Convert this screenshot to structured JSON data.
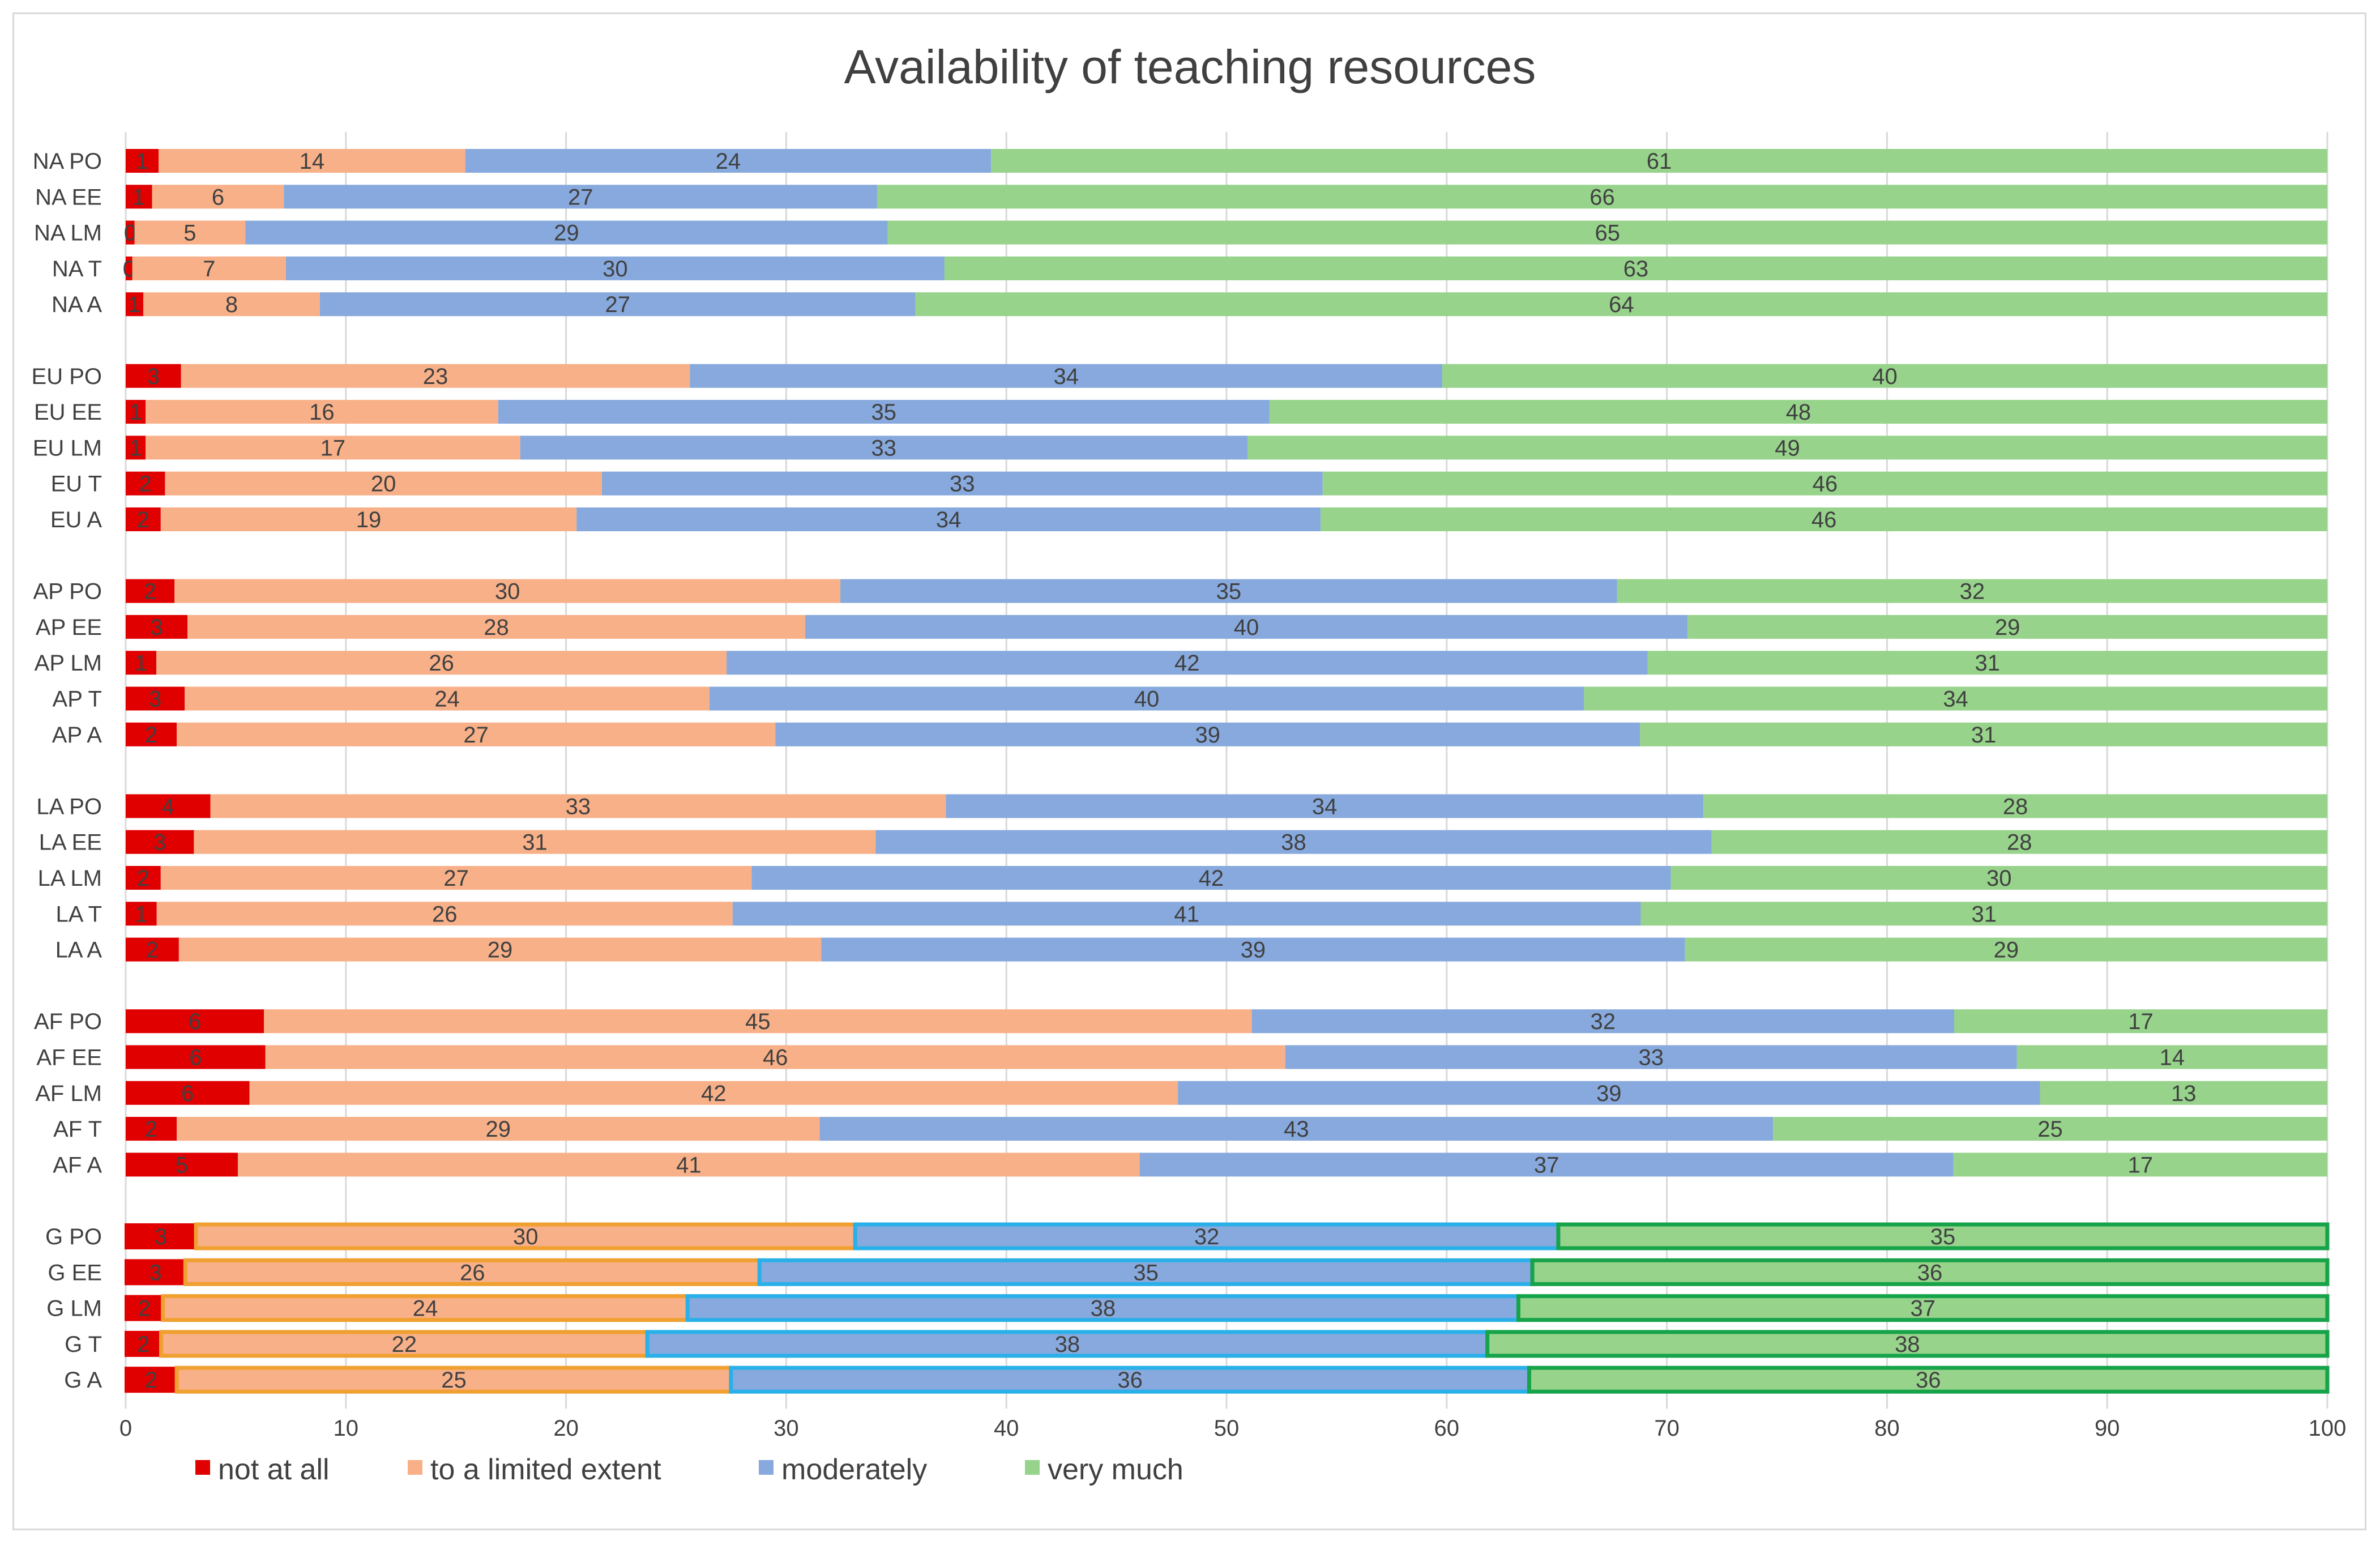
{
  "chart_data": {
    "type": "bar",
    "orientation": "horizontal",
    "stacked": true,
    "title": "Availability of teaching resources",
    "xlabel": "",
    "ylabel": "",
    "xlim": [
      0,
      100
    ],
    "xticks": [
      0,
      10,
      20,
      30,
      40,
      50,
      60,
      70,
      80,
      90,
      100
    ],
    "grid": true,
    "legend_position": "bottom-left",
    "colors": {
      "not at all": "#e00000",
      "to a limited extent": "#f8b088",
      "moderately": "#87a9dd",
      "very much": "#97d38b",
      "outline_orange": "#f0a030",
      "outline_blue": "#2ab0e8",
      "outline_green": "#16a34a"
    },
    "series_names": [
      "not at all",
      "to a limited extent",
      "moderately",
      "very much"
    ],
    "groups": [
      {
        "name": "NA",
        "highlight": false,
        "rows": [
          {
            "label": "NA PO",
            "values": [
              1.5,
              14,
              24,
              61
            ],
            "labels": [
              "1",
              "14",
              "24",
              "61"
            ]
          },
          {
            "label": "NA EE",
            "values": [
              1.2,
              6,
              27,
              66
            ],
            "labels": [
              "1",
              "6",
              "27",
              "66"
            ]
          },
          {
            "label": "NA LM",
            "values": [
              0.4,
              5,
              29,
              65
            ],
            "labels": [
              "0",
              "5",
              "29",
              "65"
            ]
          },
          {
            "label": "NA T",
            "values": [
              0.3,
              7,
              30,
              63
            ],
            "labels": [
              "0",
              "7",
              "30",
              "63"
            ]
          },
          {
            "label": "NA A",
            "values": [
              0.8,
              8,
              27,
              64
            ],
            "labels": [
              "1",
              "8",
              "27",
              "64"
            ]
          }
        ]
      },
      {
        "name": "EU",
        "highlight": false,
        "rows": [
          {
            "label": "EU PO",
            "values": [
              2.5,
              23,
              34,
              40
            ],
            "labels": [
              "3",
              "23",
              "34",
              "40"
            ]
          },
          {
            "label": "EU EE",
            "values": [
              0.9,
              16,
              35,
              48
            ],
            "labels": [
              "1",
              "16",
              "35",
              "48"
            ]
          },
          {
            "label": "EU LM",
            "values": [
              0.9,
              17,
              33,
              49
            ],
            "labels": [
              "1",
              "17",
              "33",
              "49"
            ]
          },
          {
            "label": "EU T",
            "values": [
              1.8,
              20,
              33,
              46
            ],
            "labels": [
              "2",
              "20",
              "33",
              "46"
            ]
          },
          {
            "label": "EU A",
            "values": [
              1.6,
              19,
              34,
              46
            ],
            "labels": [
              "2",
              "19",
              "34",
              "46"
            ]
          }
        ]
      },
      {
        "name": "AP",
        "highlight": false,
        "rows": [
          {
            "label": "AP PO",
            "values": [
              2.2,
              30,
              35,
              32
            ],
            "labels": [
              "2",
              "30",
              "35",
              "32"
            ]
          },
          {
            "label": "AP EE",
            "values": [
              2.8,
              28,
              40,
              29
            ],
            "labels": [
              "3",
              "28",
              "40",
              "29"
            ]
          },
          {
            "label": "AP LM",
            "values": [
              1.4,
              26,
              42,
              31
            ],
            "labels": [
              "1",
              "26",
              "42",
              "31"
            ]
          },
          {
            "label": "AP T",
            "values": [
              2.7,
              24,
              40,
              34
            ],
            "labels": [
              "3",
              "24",
              "40",
              "34"
            ]
          },
          {
            "label": "AP A",
            "values": [
              2.3,
              27,
              39,
              31
            ],
            "labels": [
              "2",
              "27",
              "39",
              "31"
            ]
          }
        ]
      },
      {
        "name": "LA",
        "highlight": false,
        "rows": [
          {
            "label": "LA PO",
            "values": [
              3.8,
              33,
              34,
              28
            ],
            "labels": [
              "4",
              "33",
              "34",
              "28"
            ]
          },
          {
            "label": "LA EE",
            "values": [
              3.1,
              31,
              38,
              28
            ],
            "labels": [
              "3",
              "31",
              "38",
              "28"
            ]
          },
          {
            "label": "LA LM",
            "values": [
              1.6,
              27,
              42,
              30
            ],
            "labels": [
              "2",
              "27",
              "42",
              "30"
            ]
          },
          {
            "label": "LA T",
            "values": [
              1.4,
              26,
              41,
              31
            ],
            "labels": [
              "1",
              "26",
              "41",
              "31"
            ]
          },
          {
            "label": "LA A",
            "values": [
              2.4,
              29,
              39,
              29
            ],
            "labels": [
              "2",
              "29",
              "39",
              "29"
            ]
          }
        ]
      },
      {
        "name": "AF",
        "highlight": false,
        "rows": [
          {
            "label": "AF PO",
            "values": [
              6.3,
              45,
              32,
              17
            ],
            "labels": [
              "6",
              "45",
              "32",
              "17"
            ]
          },
          {
            "label": "AF EE",
            "values": [
              6.3,
              46,
              33,
              14
            ],
            "labels": [
              "6",
              "46",
              "33",
              "14"
            ]
          },
          {
            "label": "AF LM",
            "values": [
              5.6,
              42,
              39,
              13
            ],
            "labels": [
              "6",
              "42",
              "39",
              "13"
            ]
          },
          {
            "label": "AF T",
            "values": [
              2.3,
              29,
              43,
              25
            ],
            "labels": [
              "2",
              "29",
              "43",
              "25"
            ]
          },
          {
            "label": "AF A",
            "values": [
              5.1,
              41,
              37,
              17
            ],
            "labels": [
              "5",
              "41",
              "37",
              "17"
            ]
          }
        ]
      },
      {
        "name": "G",
        "highlight": true,
        "rows": [
          {
            "label": "G PO",
            "values": [
              3.2,
              30,
              32,
              35
            ],
            "labels": [
              "3",
              "30",
              "32",
              "35"
            ]
          },
          {
            "label": "G EE",
            "values": [
              2.7,
              26,
              35,
              36
            ],
            "labels": [
              "3",
              "26",
              "35",
              "36"
            ]
          },
          {
            "label": "G LM",
            "values": [
              1.7,
              24,
              38,
              37
            ],
            "labels": [
              "2",
              "24",
              "38",
              "37"
            ]
          },
          {
            "label": "G T",
            "values": [
              1.6,
              22,
              38,
              38
            ],
            "labels": [
              "2",
              "22",
              "38",
              "38"
            ]
          },
          {
            "label": "G A",
            "values": [
              2.3,
              25,
              36,
              36
            ],
            "labels": [
              "2",
              "25",
              "36",
              "36"
            ]
          }
        ]
      }
    ]
  }
}
